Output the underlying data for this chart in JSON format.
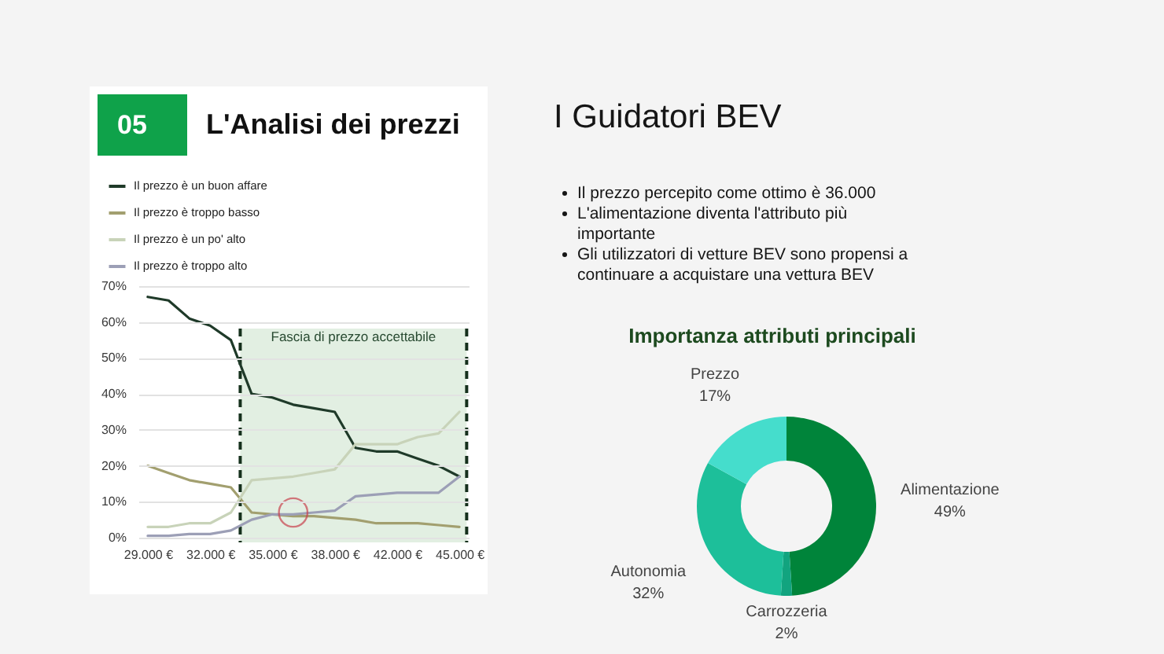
{
  "chart_data": [
    {
      "type": "line",
      "title": "L'Analisi dei prezzi",
      "annotations": [
        "05",
        "Fascia di prezzo accettabile"
      ],
      "categories": [
        "29.000 €",
        null,
        null,
        "32.000 €",
        null,
        null,
        "35.000 €",
        null,
        null,
        "38.000 €",
        null,
        null,
        "42.000 €",
        null,
        null,
        "45.000 €"
      ],
      "series": [
        {
          "name": "Il prezzo è un buon affare",
          "color": "#1f3a29",
          "values": [
            67,
            66,
            61,
            59,
            55,
            40,
            39,
            37,
            36,
            35,
            25,
            24,
            24,
            22,
            20,
            17
          ]
        },
        {
          "name": "Il prezzo è troppo basso",
          "color": "#a29f6f",
          "values": [
            20,
            18,
            16,
            15,
            14,
            7,
            6.5,
            6,
            6,
            5.5,
            5,
            4,
            4,
            4,
            3.5,
            3
          ]
        },
        {
          "name": "Il prezzo è un po' alto",
          "color": "#c8d3b9",
          "values": [
            3,
            3,
            4,
            4,
            7,
            16,
            16.5,
            17,
            18,
            19,
            26,
            26,
            26,
            28,
            29,
            35
          ]
        },
        {
          "name": "Il prezzo è troppo alto",
          "color": "#9c9fb6",
          "values": [
            0.5,
            0.5,
            1,
            1,
            2,
            5,
            6.5,
            6.5,
            7,
            7.5,
            11.5,
            12,
            12.5,
            12.5,
            12.5,
            17
          ]
        },
        {
          "type": "scatter",
          "color": "#c9434f",
          "marker": "circle",
          "values": [
            null,
            null,
            null,
            null,
            null,
            null,
            null,
            7,
            null,
            null,
            null,
            null,
            null,
            null,
            null,
            null
          ]
        }
      ],
      "ylim": [
        0,
        70
      ],
      "yticks": [
        {
          "value": 0,
          "label": "0%"
        },
        {
          "value": 10,
          "label": "10%"
        },
        {
          "value": 20,
          "label": "20%"
        },
        {
          "value": 30,
          "label": "30%"
        },
        {
          "value": 40,
          "label": "40%"
        },
        {
          "value": 50,
          "label": "50%"
        },
        {
          "value": 60,
          "label": "60%"
        },
        {
          "value": 70,
          "label": "70%"
        }
      ],
      "grid": "y",
      "legend": "top left"
    },
    {
      "type": "other",
      "title": "I Guidatori BEV",
      "annotations": [
        "Il prezzo percepito come ottimo è 36.000",
        "L'alimentazione diventa l'attributo più importante",
        "Gli utilizzatori di vetture BEV sono propensi a continuare a acquistare una vettura BEV"
      ]
    },
    {
      "type": "donut",
      "title": "Importanza attributi principali",
      "categories": [
        "Alimentazione",
        "Carrozzeria",
        "Autonomia",
        "Prezzo"
      ],
      "values": [
        49,
        2,
        32,
        17
      ],
      "colors": [
        "#00843a",
        "#12a47f",
        "#1dbf9a",
        "#45ddcc"
      ],
      "value_labels": [
        "49%",
        "2%",
        "32%",
        "17%"
      ]
    }
  ]
}
